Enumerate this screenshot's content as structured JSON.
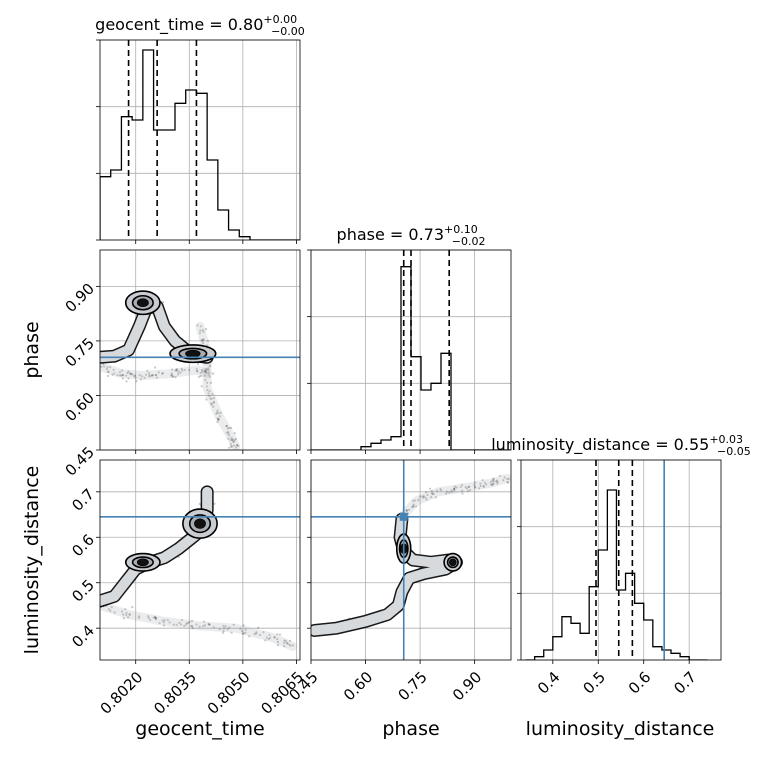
{
  "chart_data": {
    "type": "corner",
    "parameters": [
      "geocent_time",
      "phase",
      "luminosity_distance"
    ],
    "truth_color": "#4682b4",
    "grid": true,
    "panels": [
      {
        "id": "hist-geocent_time",
        "type": "histogram",
        "title_param": "geocent_time",
        "title_value": "0.80",
        "title_plus": "+0.00",
        "title_minus": "−0.00",
        "xlim": [
          0.801,
          0.8066
        ],
        "ylim": [
          0,
          60
        ],
        "bin_edges": [
          0.801,
          0.8013,
          0.8016,
          0.8019,
          0.8022,
          0.8025,
          0.8028,
          0.8031,
          0.8034,
          0.8037,
          0.804,
          0.8043,
          0.8046,
          0.8049,
          0.8052,
          0.8055,
          0.8058,
          0.8061,
          0.8064,
          0.8067
        ],
        "counts": [
          19,
          21,
          37,
          36,
          57,
          33,
          33,
          41,
          45,
          44,
          24,
          9,
          3,
          1,
          0,
          0,
          0,
          0,
          0
        ],
        "quantiles": [
          0.8018,
          0.8026,
          0.8037
        ],
        "yticks": [
          0,
          20,
          40,
          60
        ]
      },
      {
        "id": "hist-phase",
        "type": "histogram",
        "title_param": "phase",
        "title_value": "0.73",
        "title_plus": "+0.10",
        "title_minus": "−0.02",
        "xlim": [
          0.45,
          1.0
        ],
        "ylim": [
          0,
          60
        ],
        "bin_edges": [
          0.45,
          0.4775,
          0.505,
          0.5325,
          0.56,
          0.5875,
          0.615,
          0.6425,
          0.67,
          0.6975,
          0.725,
          0.7525,
          0.78,
          0.8075,
          0.835,
          0.8625,
          0.89,
          0.9175,
          0.945,
          0.9725,
          1.0
        ],
        "counts": [
          0,
          0,
          0,
          0,
          0,
          1,
          2,
          3,
          4,
          55,
          28,
          18,
          20,
          29,
          0,
          0,
          0,
          0,
          0,
          0
        ],
        "quantiles": [
          0.705,
          0.725,
          0.83
        ],
        "yticks": [
          0,
          20,
          40,
          60
        ]
      },
      {
        "id": "hist-luminosity_distance",
        "type": "histogram",
        "title_param": "luminosity_distance",
        "title_value": "0.55",
        "title_plus": "+0.03",
        "title_minus": "−0.05",
        "xlim": [
          0.33,
          0.77
        ],
        "ylim": [
          0,
          60
        ],
        "bin_edges": [
          0.34,
          0.36,
          0.38,
          0.4,
          0.42,
          0.44,
          0.46,
          0.48,
          0.5,
          0.52,
          0.54,
          0.56,
          0.58,
          0.6,
          0.62,
          0.64,
          0.66,
          0.68,
          0.7,
          0.72,
          0.74
        ],
        "counts": [
          0,
          1,
          3,
          7,
          13,
          11,
          8,
          22,
          33,
          51,
          21,
          26,
          17,
          12,
          4,
          3,
          2,
          1,
          0,
          0
        ],
        "quantiles": [
          0.495,
          0.545,
          0.575
        ],
        "truth": 0.645,
        "yticks": [
          0,
          20,
          40,
          60
        ]
      },
      {
        "id": "scatter-geocent_time-phase",
        "type": "2d",
        "x_param": "geocent_time",
        "y_param": "phase",
        "xlim": [
          0.801,
          0.8066
        ],
        "ylim": [
          0.45,
          1.0
        ],
        "truth_y": 0.705,
        "modes": [
          {
            "x": 0.8022,
            "y": 0.855,
            "sx": 0.0003,
            "sy": 0.02
          },
          {
            "x": 0.8036,
            "y": 0.715,
            "sx": 0.0004,
            "sy": 0.015
          }
        ],
        "tracks": [
          [
            [
              0.801,
              0.705
            ],
            [
              0.8014,
              0.708
            ],
            [
              0.8018,
              0.725
            ],
            [
              0.8021,
              0.79
            ],
            [
              0.8023,
              0.84
            ],
            [
              0.8026,
              0.845
            ],
            [
              0.8028,
              0.79
            ],
            [
              0.8031,
              0.75
            ],
            [
              0.8036,
              0.71
            ],
            [
              0.804,
              0.705
            ]
          ],
          [
            [
              0.801,
              0.68
            ],
            [
              0.8016,
              0.66
            ],
            [
              0.8022,
              0.655
            ],
            [
              0.803,
              0.66
            ],
            [
              0.8037,
              0.67
            ],
            [
              0.804,
              0.66
            ]
          ],
          [
            [
              0.8038,
              0.79
            ],
            [
              0.804,
              0.72
            ],
            [
              0.804,
              0.62
            ],
            [
              0.8043,
              0.55
            ],
            [
              0.8047,
              0.48
            ],
            [
              0.8048,
              0.46
            ]
          ]
        ],
        "contour_levels": [
          1.0,
          0.6,
          0.3
        ]
      },
      {
        "id": "scatter-geocent_time-luminosity_distance",
        "type": "2d",
        "x_param": "geocent_time",
        "y_param": "luminosity_distance",
        "xlim": [
          0.801,
          0.8066
        ],
        "ylim": [
          0.33,
          0.77
        ],
        "truth_y": 0.645,
        "modes": [
          {
            "x": 0.8022,
            "y": 0.545,
            "sx": 0.0003,
            "sy": 0.012
          },
          {
            "x": 0.8038,
            "y": 0.63,
            "sx": 0.0003,
            "sy": 0.02
          }
        ],
        "tracks": [
          [
            [
              0.801,
              0.46
            ],
            [
              0.8014,
              0.47
            ],
            [
              0.8017,
              0.5
            ],
            [
              0.802,
              0.53
            ],
            [
              0.8024,
              0.545
            ],
            [
              0.8028,
              0.555
            ],
            [
              0.8032,
              0.575
            ],
            [
              0.8036,
              0.6
            ],
            [
              0.8039,
              0.62
            ],
            [
              0.804,
              0.66
            ],
            [
              0.804,
              0.7
            ]
          ],
          [
            [
              0.801,
              0.45
            ],
            [
              0.8018,
              0.43
            ],
            [
              0.8028,
              0.415
            ],
            [
              0.8038,
              0.405
            ],
            [
              0.8048,
              0.4
            ],
            [
              0.8058,
              0.38
            ],
            [
              0.8064,
              0.36
            ]
          ]
        ],
        "contour_levels": [
          1.0,
          0.6,
          0.3
        ]
      },
      {
        "id": "scatter-phase-luminosity_distance",
        "type": "2d",
        "x_param": "phase",
        "y_param": "luminosity_distance",
        "xlim": [
          0.45,
          1.0
        ],
        "ylim": [
          0.33,
          0.77
        ],
        "truth_x": 0.705,
        "truth_y": 0.645,
        "modes": [
          {
            "x": 0.705,
            "y": 0.575,
            "sx": 0.012,
            "sy": 0.02
          },
          {
            "x": 0.84,
            "y": 0.545,
            "sx": 0.015,
            "sy": 0.012
          }
        ],
        "tracks": [
          [
            [
              0.7,
              0.64
            ],
            [
              0.695,
              0.6
            ],
            [
              0.705,
              0.57
            ],
            [
              0.73,
              0.55
            ],
            [
              0.78,
              0.545
            ],
            [
              0.83,
              0.55
            ],
            [
              0.85,
              0.545
            ],
            [
              0.82,
              0.53
            ],
            [
              0.76,
              0.52
            ],
            [
              0.72,
              0.51
            ],
            [
              0.7,
              0.48
            ],
            [
              0.69,
              0.45
            ],
            [
              0.66,
              0.43
            ],
            [
              0.6,
              0.415
            ],
            [
              0.52,
              0.4
            ],
            [
              0.46,
              0.395
            ]
          ],
          [
            [
              0.7,
              0.645
            ],
            [
              0.74,
              0.68
            ],
            [
              0.8,
              0.7
            ],
            [
              0.88,
              0.71
            ],
            [
              0.95,
              0.72
            ],
            [
              0.99,
              0.73
            ]
          ]
        ],
        "contour_levels": [
          1.0,
          0.6,
          0.3
        ]
      }
    ],
    "axes": {
      "geocent_time": {
        "xlabel": "geocent_time",
        "ticks": [
          0.802,
          0.8035,
          0.805,
          0.8065
        ],
        "tick_labels": [
          "0.8020",
          "0.8035",
          "0.8050",
          "0.8065"
        ]
      },
      "phase": {
        "xlabel": "phase",
        "ylabel": "phase",
        "ticks": [
          0.45,
          0.6,
          0.75,
          0.9
        ],
        "tick_labels": [
          "0.45",
          "0.60",
          "0.75",
          "0.90"
        ]
      },
      "luminosity_distance": {
        "xlabel": "luminosity_distance",
        "ylabel": "luminosity_distance",
        "ticks": [
          0.4,
          0.5,
          0.6,
          0.7
        ],
        "tick_labels": [
          "0.4",
          "0.5",
          "0.6",
          "0.7"
        ]
      }
    }
  }
}
